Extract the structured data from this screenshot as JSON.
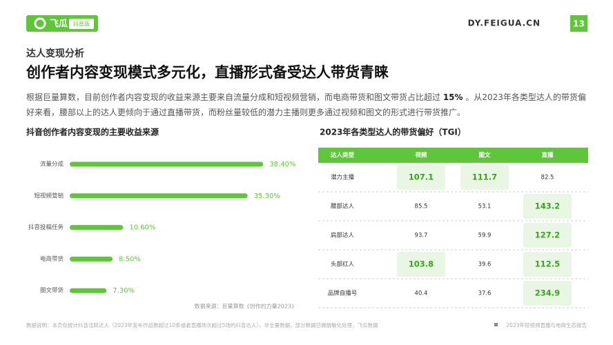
{
  "header": {
    "logo": "飞瓜",
    "logo_badge": "抖音版",
    "site": "DY.FEIGUA.CN",
    "page": "13"
  },
  "section": "达人变现分析",
  "title": "创作者内容变现模式多元化，直播形式备受达人带货青睐",
  "paragraph": [
    "根据巨量算数，目前创作者内容变现的收益来源主要来自流量分成和短视频营销，而电商带货和图文带货占比超过 ",
    "15%",
    " 。从2023年各类型达人的带货偏好来看，腰部以上的达人更倾向于通过直播带货，而粉丝量较低的潜力主播则更多通过视频和图文的形式进行带货推广。"
  ],
  "chart_data": {
    "type": "bar",
    "orientation": "horizontal",
    "title": "抖音创作者内容变现的主要收益来源",
    "categories": [
      "流量分成",
      "短视频营销",
      "抖音投稿任务",
      "电商带货",
      "图文带货"
    ],
    "values": [
      38.4,
      35.3,
      10.6,
      8.5,
      7.3
    ],
    "value_labels": [
      "38.40%",
      "35.30%",
      "10.60%",
      "8.50%",
      "7.30%"
    ],
    "color": "#5fc53a",
    "source": "数据来源：巨量算数《创作的力量2023》"
  },
  "table": {
    "title": "2023年各类型达人的带货偏好（TGI）",
    "header": [
      "达人类型",
      "视频",
      "图文",
      "直播"
    ],
    "rows": [
      [
        "潜力主播",
        "107.1",
        "111.7",
        "82.5"
      ],
      [
        "腰部达人",
        "85.5",
        "53.1",
        "143.2"
      ],
      [
        "肩部达人",
        "93.7",
        "59.9",
        "127.2"
      ],
      [
        "头部红人",
        "103.8",
        "39.6",
        "112.5"
      ],
      [
        "品牌自播号",
        "40.4",
        "37.6",
        "234.9"
      ]
    ],
    "highlight": [
      [
        0,
        1
      ],
      [
        0,
        2
      ],
      [
        1,
        3
      ],
      [
        2,
        3
      ],
      [
        3,
        1
      ],
      [
        3,
        3
      ],
      [
        4,
        3
      ]
    ]
  },
  "footer": {
    "note": "数据说明：本页仅统计抖音活跃达人（2023年发布作品数超过10条或者直播场次超过5场的抖音达人），非全量数据，部分数据已做脱敏化处理，飞瓜数据",
    "report": "2023年短视频直播与电商生态报告"
  }
}
